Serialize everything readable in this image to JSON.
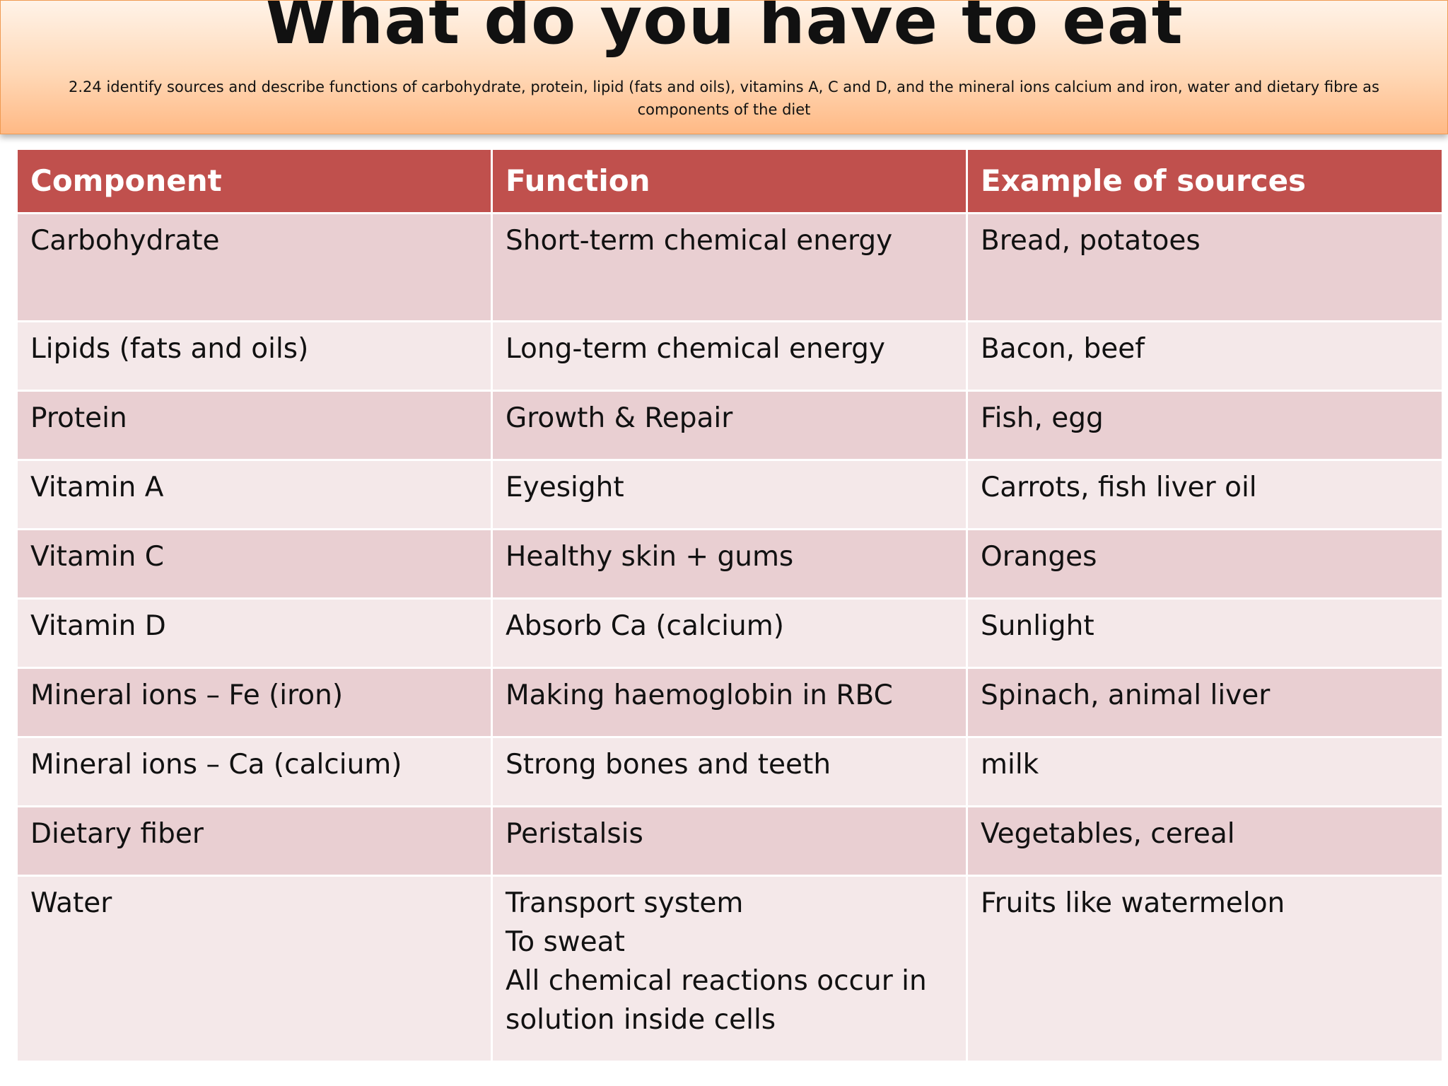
{
  "header": {
    "title": "What do you have to eat",
    "subtitle": "2.24 identify sources and describe functions of carbohydrate, protein, lipid (fats and oils), vitamins A, C and D, and the mineral ions calcium and iron, water and dietary fibre as components of the diet"
  },
  "table": {
    "columns": [
      "Component",
      "Function",
      "Example of sources"
    ],
    "rows": [
      {
        "component": "Carbohydrate",
        "function": [
          "Short-term chemical energy"
        ],
        "sources": "Bread, potatoes"
      },
      {
        "component": "Lipids (fats and oils)",
        "function": [
          "Long-term chemical energy"
        ],
        "sources": "Bacon, beef"
      },
      {
        "component": "Protein",
        "function": [
          "Growth & Repair"
        ],
        "sources": "Fish, egg"
      },
      {
        "component": "Vitamin A",
        "function": [
          "Eyesight"
        ],
        "sources": "Carrots, fish liver oil"
      },
      {
        "component": "Vitamin C",
        "function": [
          "Healthy skin + gums"
        ],
        "sources": "Oranges"
      },
      {
        "component": "Vitamin D",
        "function": [
          "Absorb Ca (calcium)"
        ],
        "sources": "Sunlight"
      },
      {
        "component": "Mineral ions – Fe (iron)",
        "function": [
          "Making haemoglobin in RBC"
        ],
        "sources": "Spinach, animal liver"
      },
      {
        "component": "Mineral ions – Ca (calcium)",
        "function": [
          "Strong bones and teeth"
        ],
        "sources": "milk"
      },
      {
        "component": "Dietary fiber",
        "function": [
          "Peristalsis"
        ],
        "sources": "Vegetables, cereal"
      },
      {
        "component": "Water",
        "function": [
          "Transport system",
          "To sweat",
          "All chemical reactions occur in solution inside cells"
        ],
        "sources": "Fruits like watermelon"
      }
    ]
  },
  "colors": {
    "header_row": "#c0504d",
    "band_odd": "#e9cfd2",
    "band_even": "#f4e8e9",
    "banner_top": "#fff3e8",
    "banner_bottom": "#ffb985"
  }
}
